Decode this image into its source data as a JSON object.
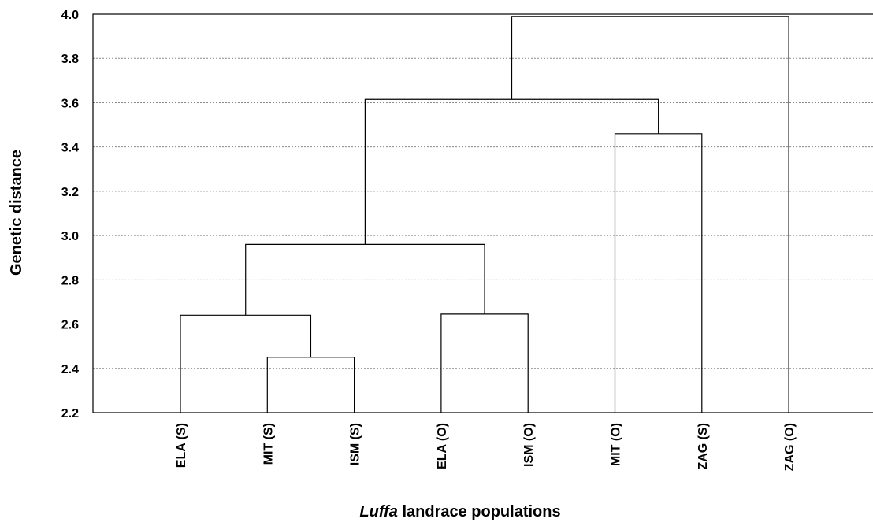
{
  "chart_data": {
    "type": "dendrogram",
    "title": "",
    "xlabel_italic": "Luffa",
    "xlabel_rest": " landrace populations",
    "ylabel": "Genetic distance",
    "ylim": [
      2.2,
      4.0
    ],
    "yticks": [
      "2.2",
      "2.4",
      "2.6",
      "2.8",
      "3.0",
      "3.2",
      "3.4",
      "3.6",
      "3.8",
      "4.0"
    ],
    "grid": true,
    "leaves": [
      "ELA (S)",
      "MIT (S)",
      "ISM (S)",
      "ELA (O)",
      "ISM (O)",
      "MIT (O)",
      "ZAG (S)",
      "ZAG (O)"
    ],
    "merges": [
      {
        "left": "MIT (S)",
        "right": "ISM (S)",
        "height": 2.45
      },
      {
        "left": "ELA (S)",
        "right": "cluster 1",
        "height": 2.64
      },
      {
        "left": "ELA (O)",
        "right": "ISM (O)",
        "height": 2.645
      },
      {
        "left": "cluster 2",
        "right": "cluster 3",
        "height": 2.96
      },
      {
        "left": "MIT (O)",
        "right": "ZAG (S)",
        "height": 3.46
      },
      {
        "left": "cluster 4",
        "right": "cluster 5",
        "height": 3.615
      },
      {
        "left": "cluster 6",
        "right": "ZAG (O)",
        "height": 3.99
      }
    ]
  }
}
